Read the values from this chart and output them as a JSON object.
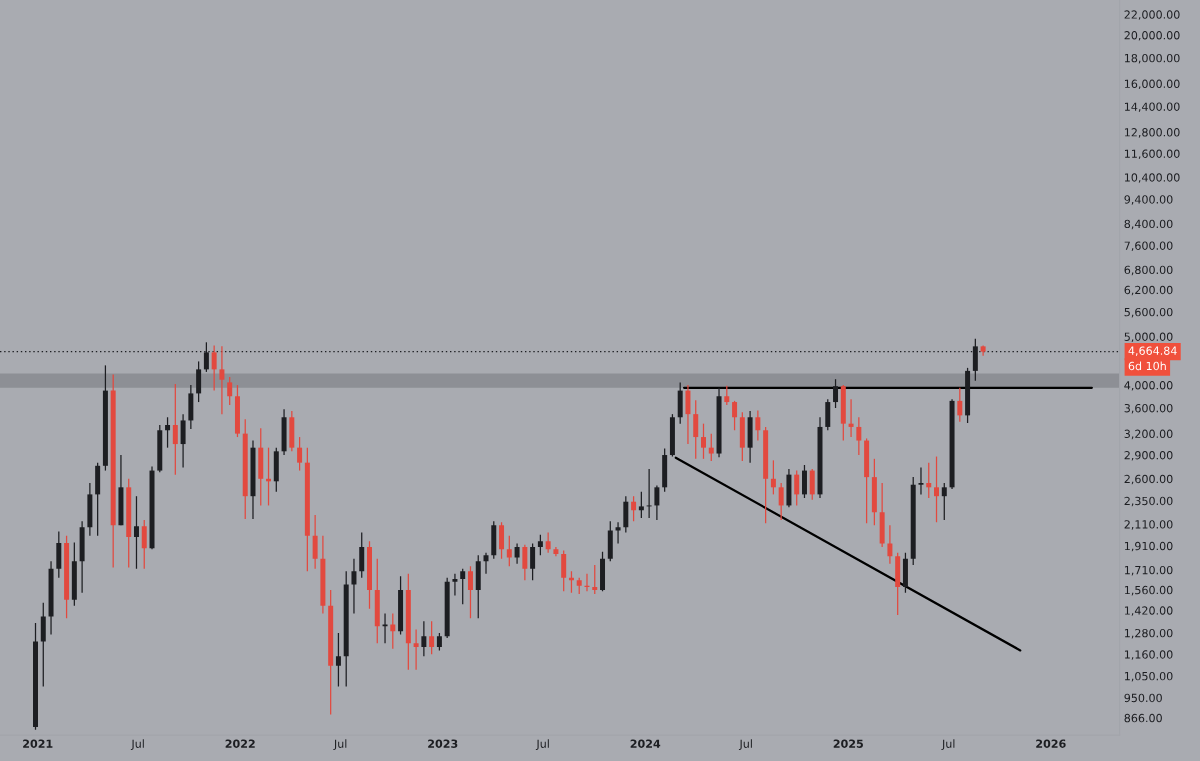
{
  "chart_data": {
    "type": "candlestick",
    "x": [
      "2020-12-28",
      "2021-01-11",
      "2021-01-25",
      "2021-02-08",
      "2021-02-22",
      "2021-03-08",
      "2021-03-22",
      "2021-04-05",
      "2021-04-19",
      "2021-05-03",
      "2021-05-17",
      "2021-05-31",
      "2021-06-14",
      "2021-06-28",
      "2021-07-12",
      "2021-07-26",
      "2021-08-09",
      "2021-08-23",
      "2021-09-06",
      "2021-09-20",
      "2021-10-04",
      "2021-10-18",
      "2021-11-01",
      "2021-11-15",
      "2021-11-29",
      "2021-12-13",
      "2021-12-27",
      "2022-01-10",
      "2022-01-24",
      "2022-02-07",
      "2022-02-21",
      "2022-03-07",
      "2022-03-21",
      "2022-04-04",
      "2022-04-18",
      "2022-05-02",
      "2022-05-16",
      "2022-05-30",
      "2022-06-13",
      "2022-06-27",
      "2022-07-11",
      "2022-07-25",
      "2022-08-08",
      "2022-08-22",
      "2022-09-05",
      "2022-09-19",
      "2022-10-03",
      "2022-10-17",
      "2022-10-31",
      "2022-11-14",
      "2022-11-28",
      "2022-12-12",
      "2022-12-26",
      "2023-01-09",
      "2023-01-23",
      "2023-02-06",
      "2023-02-20",
      "2023-03-06",
      "2023-03-20",
      "2023-04-03",
      "2023-04-17",
      "2023-05-01",
      "2023-05-15",
      "2023-05-29",
      "2023-06-12",
      "2023-06-26",
      "2023-07-10",
      "2023-07-24",
      "2023-08-07",
      "2023-08-21",
      "2023-09-04",
      "2023-09-18",
      "2023-10-02",
      "2023-10-16",
      "2023-10-30",
      "2023-11-13",
      "2023-11-27",
      "2023-12-11",
      "2023-12-25",
      "2024-01-08",
      "2024-01-22",
      "2024-02-05",
      "2024-02-19",
      "2024-03-04",
      "2024-03-18",
      "2024-04-01",
      "2024-04-15",
      "2024-04-29",
      "2024-05-13",
      "2024-05-27",
      "2024-06-10",
      "2024-06-24",
      "2024-07-08",
      "2024-07-22",
      "2024-08-05",
      "2024-08-19",
      "2024-09-02",
      "2024-09-16",
      "2024-09-30",
      "2024-10-14",
      "2024-10-28",
      "2024-11-11",
      "2024-11-25",
      "2024-12-09",
      "2024-12-23",
      "2025-01-06",
      "2025-01-20",
      "2025-02-03",
      "2025-02-17",
      "2025-03-03",
      "2025-03-17",
      "2025-03-31",
      "2025-04-14",
      "2025-04-28",
      "2025-05-12",
      "2025-05-26",
      "2025-06-09",
      "2025-06-23",
      "2025-07-07",
      "2025-07-21",
      "2025-08-04",
      "2025-08-18",
      "2025-09-01"
    ],
    "ohlc": [
      [
        830,
        1340,
        820,
        1230
      ],
      [
        1230,
        1470,
        1000,
        1380
      ],
      [
        1380,
        1780,
        1270,
        1720
      ],
      [
        1720,
        2040,
        1650,
        1935
      ],
      [
        1935,
        2000,
        1370,
        1490
      ],
      [
        1490,
        1940,
        1450,
        1780
      ],
      [
        1780,
        2140,
        1540,
        2080
      ],
      [
        2080,
        2550,
        2000,
        2420
      ],
      [
        2420,
        2800,
        2000,
        2760
      ],
      [
        2760,
        4380,
        2700,
        3900
      ],
      [
        3900,
        4200,
        1730,
        2100
      ],
      [
        2100,
        2900,
        2100,
        2500
      ],
      [
        2500,
        2600,
        1730,
        1990
      ],
      [
        1990,
        2400,
        1720,
        2090
      ],
      [
        2090,
        2150,
        1720,
        1890
      ],
      [
        1890,
        2750,
        1880,
        2700
      ],
      [
        2700,
        3330,
        2680,
        3250
      ],
      [
        3250,
        3450,
        3000,
        3330
      ],
      [
        3330,
        4020,
        2650,
        3050
      ],
      [
        3050,
        3500,
        2740,
        3400
      ],
      [
        3400,
        4000,
        3270,
        3850
      ],
      [
        3850,
        4460,
        3700,
        4300
      ],
      [
        4300,
        4870,
        4250,
        4650
      ],
      [
        4650,
        4800,
        3900,
        4300
      ],
      [
        4300,
        4780,
        3500,
        4100
      ],
      [
        4050,
        4150,
        3650,
        3800
      ],
      [
        3800,
        4000,
        3150,
        3200
      ],
      [
        3200,
        3420,
        2160,
        2400
      ],
      [
        2400,
        3100,
        2160,
        3000
      ],
      [
        3000,
        3280,
        2300,
        2600
      ],
      [
        2600,
        3000,
        2300,
        2570
      ],
      [
        2570,
        3000,
        2450,
        2950
      ],
      [
        2950,
        3580,
        2900,
        3450
      ],
      [
        3450,
        3550,
        2950,
        3000
      ],
      [
        3000,
        3150,
        2700,
        2800
      ],
      [
        2800,
        3000,
        1700,
        2000
      ],
      [
        2000,
        2200,
        1720,
        1800
      ],
      [
        1800,
        2000,
        1400,
        1450
      ],
      [
        1450,
        1560,
        880,
        1100
      ],
      [
        1100,
        1280,
        1000,
        1150
      ],
      [
        1150,
        1700,
        1000,
        1600
      ],
      [
        1600,
        1800,
        1400,
        1700
      ],
      [
        1700,
        2030,
        1650,
        1900
      ],
      [
        1900,
        1950,
        1430,
        1560
      ],
      [
        1560,
        1800,
        1220,
        1320
      ],
      [
        1320,
        1400,
        1220,
        1330
      ],
      [
        1330,
        1400,
        1190,
        1290
      ],
      [
        1290,
        1660,
        1270,
        1560
      ],
      [
        1560,
        1680,
        1080,
        1220
      ],
      [
        1220,
        1300,
        1080,
        1200
      ],
      [
        1200,
        1350,
        1150,
        1260
      ],
      [
        1260,
        1350,
        1160,
        1200
      ],
      [
        1200,
        1280,
        1180,
        1260
      ],
      [
        1260,
        1650,
        1250,
        1620
      ],
      [
        1620,
        1680,
        1520,
        1640
      ],
      [
        1640,
        1720,
        1460,
        1700
      ],
      [
        1700,
        1740,
        1370,
        1560
      ],
      [
        1560,
        1830,
        1370,
        1780
      ],
      [
        1780,
        1850,
        1680,
        1830
      ],
      [
        1830,
        2140,
        1800,
        2100
      ],
      [
        2100,
        2130,
        1800,
        1880
      ],
      [
        1880,
        2000,
        1740,
        1810
      ],
      [
        1810,
        1930,
        1760,
        1900
      ],
      [
        1900,
        1920,
        1630,
        1720
      ],
      [
        1720,
        1930,
        1630,
        1900
      ],
      [
        1900,
        2010,
        1830,
        1950
      ],
      [
        1950,
        2030,
        1850,
        1880
      ],
      [
        1880,
        1900,
        1820,
        1840
      ],
      [
        1840,
        1870,
        1550,
        1650
      ],
      [
        1650,
        1700,
        1540,
        1630
      ],
      [
        1630,
        1650,
        1530,
        1590
      ],
      [
        1590,
        1680,
        1550,
        1580
      ],
      [
        1580,
        1750,
        1530,
        1560
      ],
      [
        1560,
        1860,
        1550,
        1800
      ],
      [
        1800,
        2140,
        1780,
        2050
      ],
      [
        2050,
        2130,
        1930,
        2080
      ],
      [
        2080,
        2400,
        2030,
        2340
      ],
      [
        2340,
        2400,
        2140,
        2250
      ],
      [
        2250,
        2450,
        2170,
        2290
      ],
      [
        2290,
        2720,
        2170,
        2300
      ],
      [
        2300,
        2520,
        2150,
        2500
      ],
      [
        2500,
        2990,
        2450,
        2900
      ],
      [
        2900,
        3500,
        2880,
        3450
      ],
      [
        3450,
        4050,
        3350,
        3900
      ],
      [
        3900,
        4000,
        3050,
        3500
      ],
      [
        3500,
        3730,
        2850,
        3150
      ],
      [
        3150,
        3350,
        2850,
        3000
      ],
      [
        3000,
        3200,
        2820,
        2920
      ],
      [
        2920,
        3950,
        2870,
        3800
      ],
      [
        3800,
        3990,
        3650,
        3700
      ],
      [
        3700,
        3720,
        3250,
        3450
      ],
      [
        3450,
        3530,
        2820,
        3000
      ],
      [
        3000,
        3550,
        2800,
        3450
      ],
      [
        3450,
        3560,
        3100,
        3250
      ],
      [
        3250,
        3300,
        2120,
        2600
      ],
      [
        2600,
        2830,
        2420,
        2500
      ],
      [
        2500,
        2550,
        2150,
        2300
      ],
      [
        2300,
        2720,
        2280,
        2650
      ],
      [
        2650,
        2700,
        2300,
        2420
      ],
      [
        2420,
        2770,
        2380,
        2700
      ],
      [
        2700,
        2720,
        2360,
        2420
      ],
      [
        2420,
        3450,
        2380,
        3300
      ],
      [
        3300,
        3750,
        3250,
        3700
      ],
      [
        3700,
        4110,
        3600,
        3980
      ],
      [
        3980,
        4000,
        3100,
        3350
      ],
      [
        3350,
        3750,
        3150,
        3300
      ],
      [
        3300,
        3450,
        2900,
        3100
      ],
      [
        3100,
        3130,
        2120,
        2620
      ],
      [
        2620,
        2850,
        2100,
        2230
      ],
      [
        2230,
        2550,
        1900,
        1930
      ],
      [
        1930,
        2100,
        1760,
        1820
      ],
      [
        1820,
        1850,
        1390,
        1580
      ],
      [
        1580,
        1850,
        1540,
        1800
      ],
      [
        1800,
        2620,
        1750,
        2530
      ],
      [
        2530,
        2740,
        2420,
        2550
      ],
      [
        2550,
        2800,
        2380,
        2500
      ],
      [
        2500,
        2880,
        2130,
        2400
      ],
      [
        2400,
        2550,
        2150,
        2500
      ],
      [
        2500,
        3750,
        2480,
        3720
      ],
      [
        3720,
        3950,
        3380,
        3480
      ],
      [
        3480,
        4330,
        3360,
        4270
      ],
      [
        4270,
        4950,
        4080,
        4780
      ],
      [
        4780,
        4800,
        4580,
        4664.84
      ]
    ],
    "colors": [
      "#1d1e22",
      "#1d1e22",
      "#1d1e22",
      "#1d1e22",
      "#e2493f",
      "#1d1e22",
      "#1d1e22",
      "#1d1e22",
      "#1d1e22",
      "#1d1e22",
      "#e2493f",
      "#1d1e22",
      "#e2493f",
      "#1d1e22",
      "#e2493f",
      "#1d1e22",
      "#1d1e22",
      "#1d1e22",
      "#e2493f",
      "#1d1e22",
      "#1d1e22",
      "#1d1e22",
      "#1d1e22",
      "#e2493f",
      "#e2493f",
      "#e2493f",
      "#e2493f",
      "#e2493f",
      "#1d1e22",
      "#e2493f",
      "#e2493f",
      "#1d1e22",
      "#1d1e22",
      "#e2493f",
      "#e2493f",
      "#e2493f",
      "#e2493f",
      "#e2493f",
      "#e2493f",
      "#1d1e22",
      "#1d1e22",
      "#1d1e22",
      "#1d1e22",
      "#e2493f",
      "#e2493f",
      "#1d1e22",
      "#e2493f",
      "#1d1e22",
      "#e2493f",
      "#e2493f",
      "#1d1e22",
      "#e2493f",
      "#1d1e22",
      "#1d1e22",
      "#1d1e22",
      "#1d1e22",
      "#e2493f",
      "#1d1e22",
      "#1d1e22",
      "#1d1e22",
      "#e2493f",
      "#e2493f",
      "#1d1e22",
      "#e2493f",
      "#1d1e22",
      "#1d1e22",
      "#e2493f",
      "#e2493f",
      "#e2493f",
      "#e2493f",
      "#e2493f",
      "#e2493f",
      "#e2493f",
      "#1d1e22",
      "#1d1e22",
      "#1d1e22",
      "#1d1e22",
      "#e2493f",
      "#1d1e22",
      "#1d1e22",
      "#1d1e22",
      "#1d1e22",
      "#1d1e22",
      "#1d1e22",
      "#e2493f",
      "#e2493f",
      "#e2493f",
      "#e2493f",
      "#1d1e22",
      "#e2493f",
      "#e2493f",
      "#e2493f",
      "#1d1e22",
      "#e2493f",
      "#e2493f",
      "#e2493f",
      "#e2493f",
      "#1d1e22",
      "#e2493f",
      "#1d1e22",
      "#e2493f",
      "#1d1e22",
      "#1d1e22",
      "#1d1e22",
      "#e2493f",
      "#e2493f",
      "#e2493f",
      "#e2493f",
      "#e2493f",
      "#e2493f",
      "#e2493f",
      "#e2493f",
      "#1d1e22",
      "#1d1e22",
      "#1d1e22",
      "#e2493f",
      "#e2493f",
      "#1d1e22",
      "#1d1e22",
      "#e2493f",
      "#1d1e22",
      "#1d1e22",
      "#e2493f"
    ],
    "series": [
      {
        "type": "line",
        "color": "#000000",
        "x": [
          "2024-03-11",
          "2026-03-16"
        ],
        "values": [
          3950,
          3950
        ]
      },
      {
        "type": "line",
        "color": "#000000",
        "x": [
          "2024-02-25",
          "2025-11-07"
        ],
        "values": [
          2864,
          1181
        ]
      }
    ],
    "bands": [
      {
        "axis": "y",
        "from": 3950,
        "to": 4220,
        "color": "#8d8f95"
      }
    ],
    "ref_lines": [
      {
        "axis": "y",
        "value": 4664.84,
        "label": "4,664.84",
        "color": "#1d1e22",
        "line_style": "dotted"
      }
    ],
    "annotations": [
      "6d 10h"
    ],
    "log": true,
    "xlim": [
      "2020-10-25",
      "2026-05-05"
    ],
    "xticks": [
      {
        "value": "2021-01-01",
        "label": "2021"
      },
      {
        "value": "2021-07-01",
        "label": "Jul"
      },
      {
        "value": "2022-01-01",
        "label": "2022"
      },
      {
        "value": "2022-07-01",
        "label": "Jul"
      },
      {
        "value": "2023-01-01",
        "label": "2023"
      },
      {
        "value": "2023-07-01",
        "label": "Jul"
      },
      {
        "value": "2024-01-01",
        "label": "2024"
      },
      {
        "value": "2024-07-01",
        "label": "Jul"
      },
      {
        "value": "2025-01-01",
        "label": "2025"
      },
      {
        "value": "2025-07-01",
        "label": "Jul"
      },
      {
        "value": "2026-01-01",
        "label": "2026"
      }
    ],
    "ylim": [
      800,
      23500
    ],
    "yticks": [
      {
        "value": 866,
        "label": "866.00"
      },
      {
        "value": 950,
        "label": "950.00"
      },
      {
        "value": 1050,
        "label": "1,050.00"
      },
      {
        "value": 1160,
        "label": "1,160.00"
      },
      {
        "value": 1280,
        "label": "1,280.00"
      },
      {
        "value": 1420,
        "label": "1,420.00"
      },
      {
        "value": 1560,
        "label": "1,560.00"
      },
      {
        "value": 1710,
        "label": "1,710.00"
      },
      {
        "value": 1910,
        "label": "1,910.00"
      },
      {
        "value": 2110,
        "label": "2,110.00"
      },
      {
        "value": 2350,
        "label": "2,350.00"
      },
      {
        "value": 2600,
        "label": "2,600.00"
      },
      {
        "value": 2900,
        "label": "2,900.00"
      },
      {
        "value": 3200,
        "label": "3,200.00"
      },
      {
        "value": 3600,
        "label": "3,600.00"
      },
      {
        "value": 4000,
        "label": "4,000.00"
      },
      {
        "value": 5000,
        "label": "5,000.00"
      },
      {
        "value": 5600,
        "label": "5,600.00"
      },
      {
        "value": 6200,
        "label": "6,200.00"
      },
      {
        "value": 6800,
        "label": "6,800.00"
      },
      {
        "value": 7600,
        "label": "7,600.00"
      },
      {
        "value": 8400,
        "label": "8,400.00"
      },
      {
        "value": 9400,
        "label": "9,400.00"
      },
      {
        "value": 10400,
        "label": "10,400.00"
      },
      {
        "value": 11600,
        "label": "11,600.00"
      },
      {
        "value": 12800,
        "label": "12,800.00"
      },
      {
        "value": 14400,
        "label": "14,400.00"
      },
      {
        "value": 16000,
        "label": "16,000.00"
      },
      {
        "value": 18000,
        "label": "18,000.00"
      },
      {
        "value": 20000,
        "label": "20,000.00"
      },
      {
        "value": 22000,
        "label": "22,000.00"
      }
    ],
    "grid": false,
    "legend": false
  }
}
